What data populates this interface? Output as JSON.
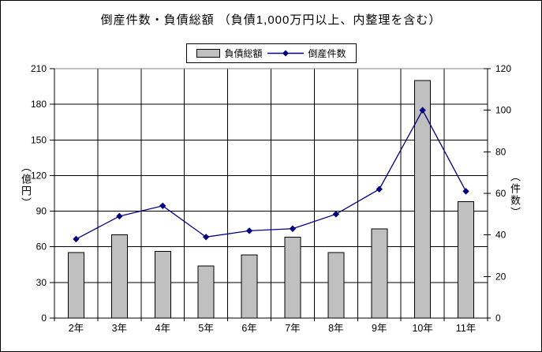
{
  "title": "倒産件数・負債総額 （負債1,000万円以上、内整理を含む）",
  "legend": {
    "bar_label": "負債総額",
    "line_label": "倒産件数"
  },
  "colors": {
    "background": "#ffffff",
    "bar_fill": "#c0c0c0",
    "bar_stroke": "#000000",
    "line": "#000080",
    "grid": "#000000",
    "plot_top_border": "#808080"
  },
  "chart_data": {
    "type": "bar+line",
    "title": "倒産件数・負債総額 （負債1,000万円以上、内整理を含む）",
    "categories": [
      "2年",
      "3年",
      "4年",
      "5年",
      "6年",
      "7年",
      "8年",
      "9年",
      "10年",
      "11年"
    ],
    "series": [
      {
        "name": "負債総額",
        "type": "bar",
        "axis": "left",
        "color": "#c0c0c0",
        "values": [
          55,
          70,
          56,
          44,
          53,
          68,
          55,
          75,
          200,
          98
        ]
      },
      {
        "name": "倒産件数",
        "type": "line",
        "axis": "right",
        "color": "#000080",
        "values": [
          38,
          49,
          54,
          39,
          42,
          43,
          50,
          62,
          100,
          61
        ]
      }
    ],
    "left_axis": {
      "label": "（億円）",
      "min": 0,
      "max": 210,
      "step": 30,
      "tick_labels": [
        "0",
        "30",
        "60",
        "90",
        "120",
        "150",
        "180",
        "210"
      ]
    },
    "right_axis": {
      "label": "（件数）",
      "min": 0,
      "max": 120,
      "step": 20,
      "tick_labels": [
        "0",
        "20",
        "40",
        "60",
        "80",
        "100",
        "120"
      ]
    },
    "grid": true,
    "legend_position": "top"
  }
}
